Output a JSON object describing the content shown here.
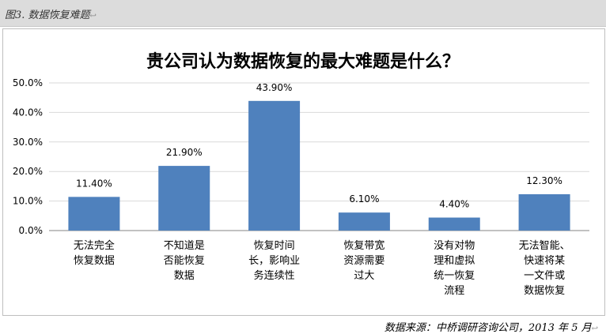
{
  "caption": "图3. 数据恢复难题",
  "caption_mark": "↩",
  "source_note": "数据来源：中桥调研咨询公司，2013 年 5 月",
  "source_mark": "↩",
  "chart_data": {
    "type": "bar",
    "title": "贵公司认为数据恢复的最大难题是什么？",
    "xlabel": "",
    "ylabel": "",
    "ylim": [
      0,
      50
    ],
    "ytick_step": 10,
    "y_tick_labels": [
      "0.0%",
      "10.0%",
      "20.0%",
      "30.0%",
      "40.0%",
      "50.0%"
    ],
    "grid": true,
    "legend": "none",
    "bar_color": "#4f81bd",
    "categories": [
      [
        "无法完全",
        "恢复数据"
      ],
      [
        "不知道是",
        "否能恢复",
        "数据"
      ],
      [
        "恢复时间",
        "长，影响业",
        "务连续性"
      ],
      [
        "恢复带宽",
        "资源需要",
        "过大"
      ],
      [
        "没有对物",
        "理和虚拟",
        "统一恢复",
        "流程"
      ],
      [
        "无法智能、",
        "快速将某",
        "一文件或",
        "数据恢复"
      ]
    ],
    "values": [
      11.4,
      21.9,
      43.9,
      6.1,
      4.4,
      12.3
    ],
    "value_labels": [
      "11.40%",
      "21.90%",
      "43.90%",
      "6.10%",
      "4.40%",
      "12.30%"
    ]
  }
}
